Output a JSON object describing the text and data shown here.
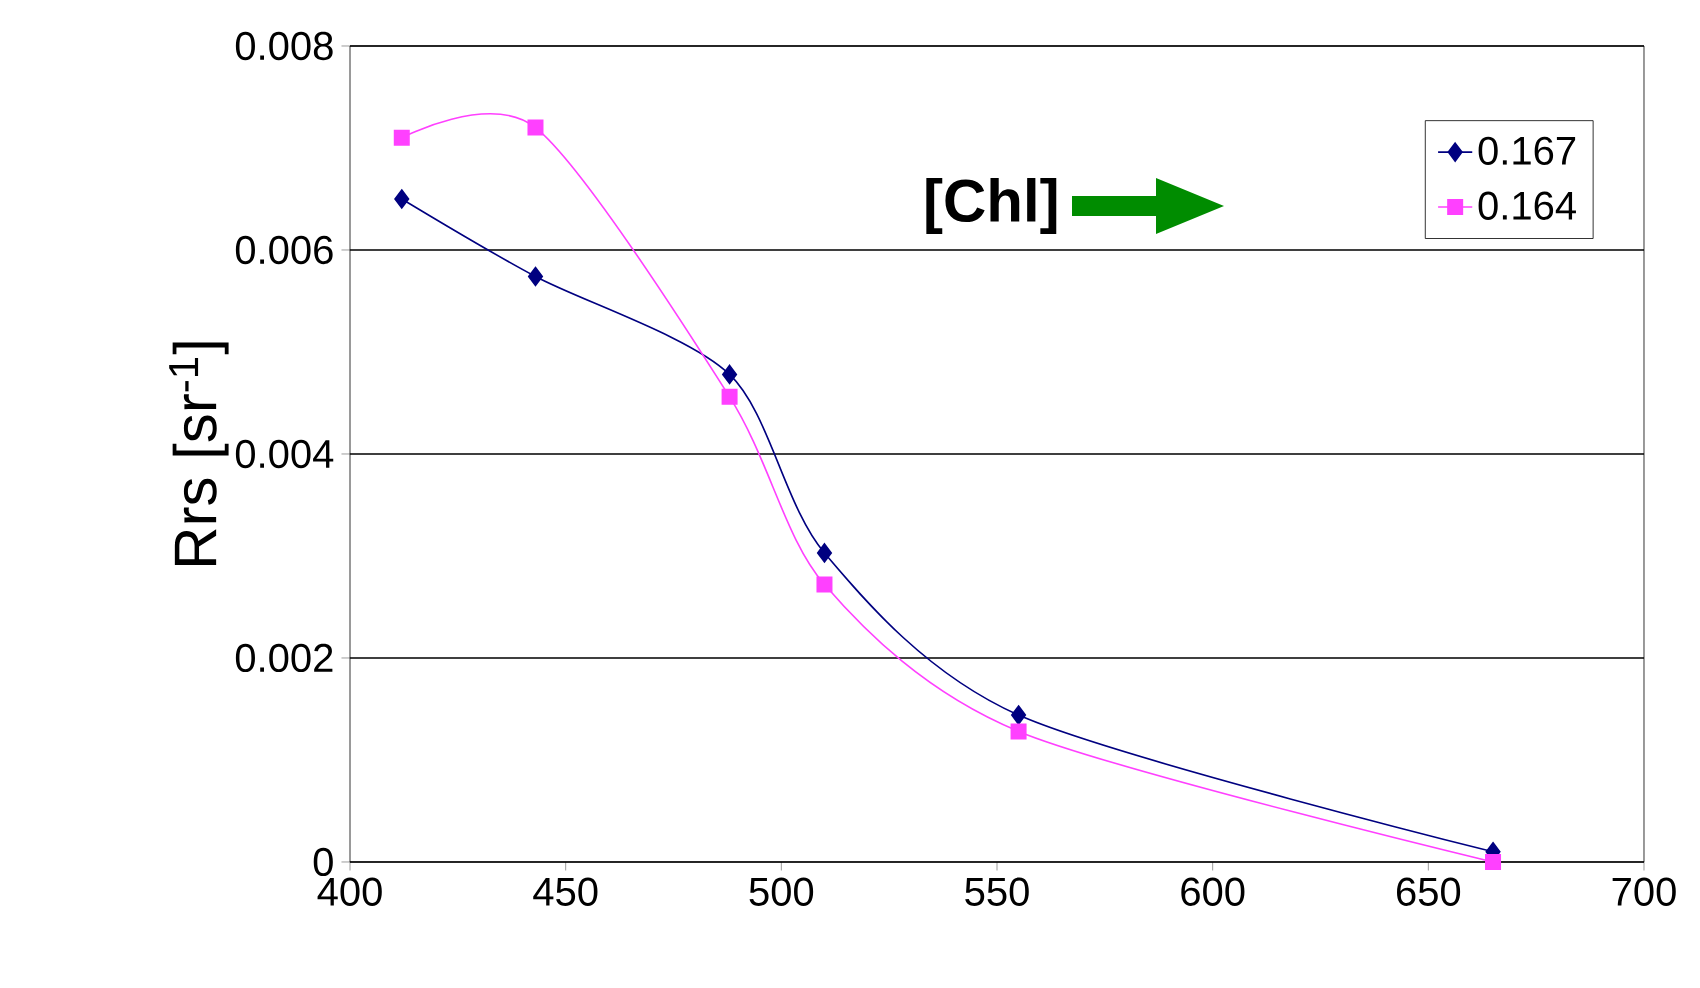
{
  "chart_data": {
    "type": "line",
    "ylabel": "Rrs [sr$^{-1}$]",
    "annotations": [
      "**[Chl]**"
    ],
    "x": [
      412,
      443,
      488,
      510,
      555,
      665
    ],
    "series": [
      {
        "name": "0.167",
        "color": "#000080",
        "marker": "diamond",
        "values": [
          0.0065,
          0.00574,
          0.00478,
          0.00303,
          0.00144,
          0.0001
        ]
      },
      {
        "name": "0.164",
        "color": "#ff40ff",
        "marker": "square",
        "values": [
          0.0071,
          0.0072,
          0.00456,
          0.00272,
          0.00128,
          0
        ]
      }
    ],
    "xlim": [
      400,
      700
    ],
    "xticks": [
      400,
      450,
      500,
      550,
      600,
      650,
      700
    ],
    "ylim": [
      0,
      0.008
    ],
    "yticks": [
      0,
      0.002,
      0.004,
      0.006,
      0.008
    ],
    "grid": "y",
    "legend": "top right"
  }
}
